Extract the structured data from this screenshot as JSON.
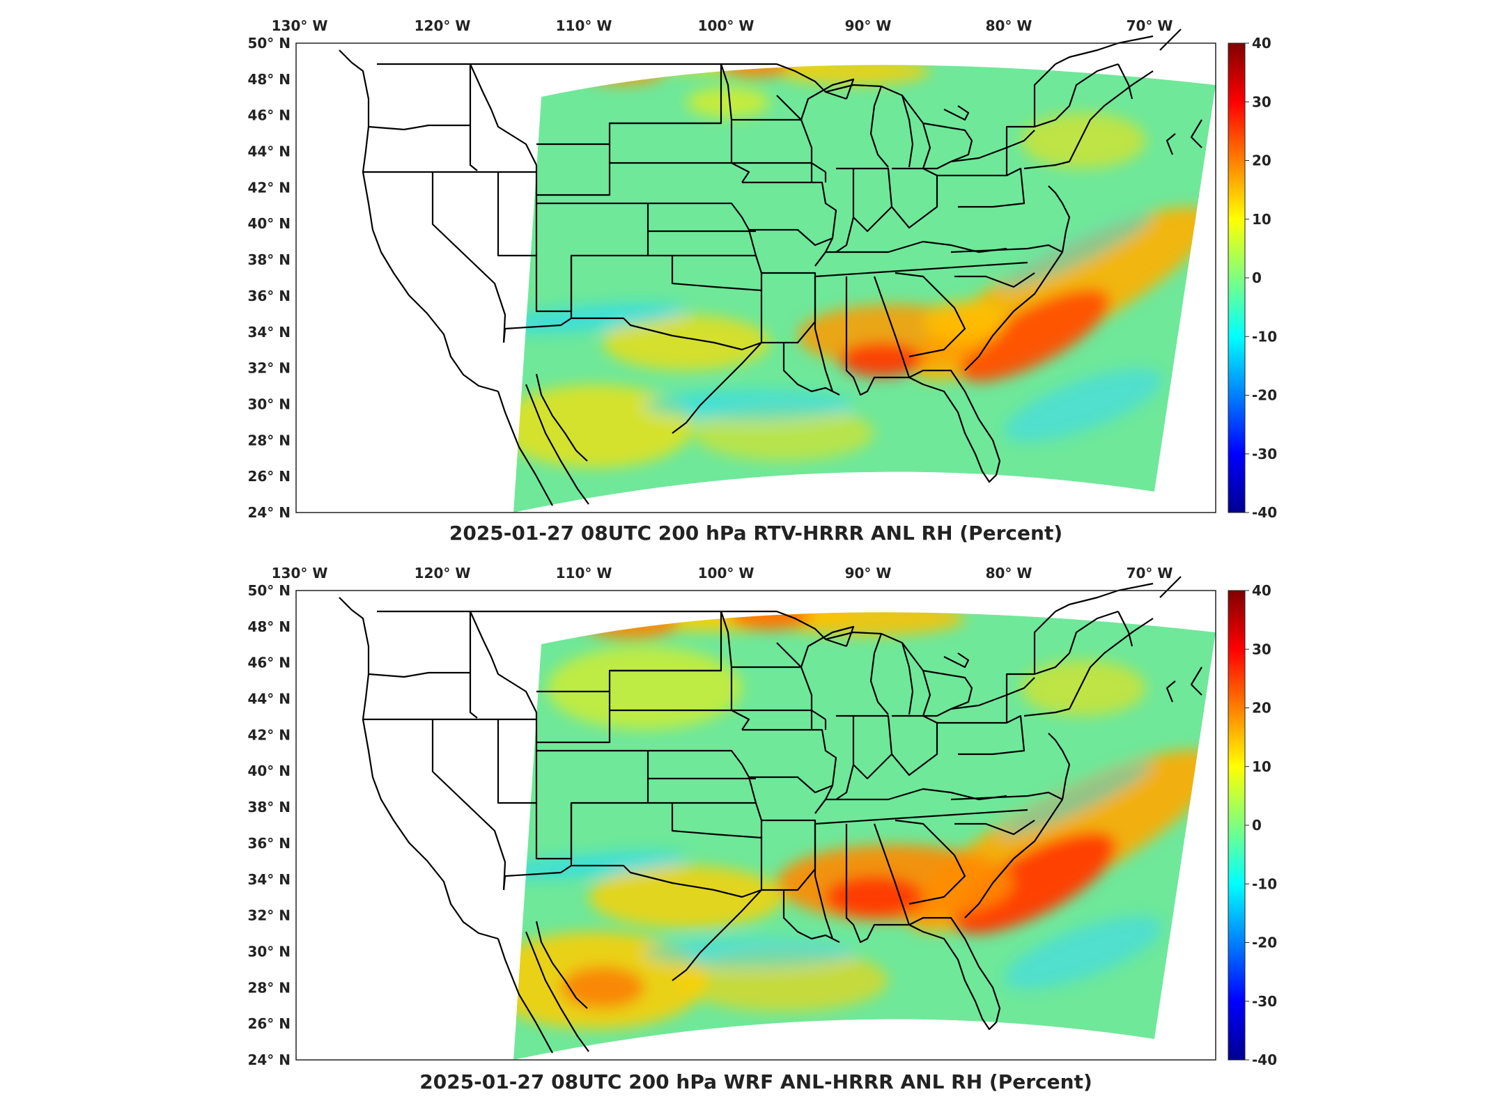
{
  "panels": [
    {
      "title": "2025-01-27 08UTC 200 hPa RTV-HRRR ANL RH (Percent)",
      "field": "rtv"
    },
    {
      "title": "2025-01-27 08UTC 200 hPa WRF ANL-HRRR ANL RH (Percent)",
      "field": "wrf"
    }
  ],
  "lon_labels": [
    "130° W",
    "120° W",
    "110° W",
    "100° W",
    "90° W",
    "80° W",
    "70° W"
  ],
  "lat_labels": [
    "50° N",
    "48° N",
    "46° N",
    "44° N",
    "42° N",
    "40° N",
    "38° N",
    "36° N",
    "34° N",
    "32° N",
    "30° N",
    "28° N",
    "26° N",
    "24° N"
  ],
  "colorbar": {
    "ticks": [
      "40",
      "30",
      "20",
      "10",
      "0",
      "-10",
      "-20",
      "-30",
      "-40"
    ],
    "range": [
      -40,
      40
    ],
    "colormap": [
      "#00008f",
      "#0000ff",
      "#00ffff",
      "#7fff7f",
      "#ffff00",
      "#ff0000",
      "#800000"
    ]
  },
  "colors": {
    "neutral_fill": "#6fe89a",
    "positive": "#ff3a00",
    "negative": "#00c8ff",
    "lines": "#000000"
  }
}
